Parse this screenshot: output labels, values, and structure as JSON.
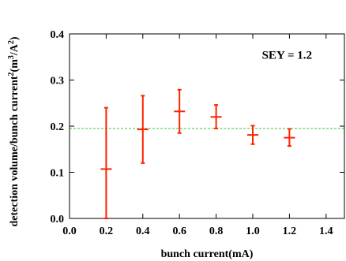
{
  "chart_data": {
    "type": "scatter",
    "xlabel": "bunch current(mA)",
    "ylabel_parts": [
      "detection volume/bunch current",
      "2",
      "(m",
      "3",
      "/A",
      "2",
      ")"
    ],
    "xlim": [
      0.0,
      1.5
    ],
    "ylim": [
      0.0,
      0.4
    ],
    "xticks": [
      "0.0",
      "0.2",
      "0.4",
      "0.6",
      "0.8",
      "1.0",
      "1.2",
      "1.4"
    ],
    "yticks": [
      "0.0",
      "0.1",
      "0.2",
      "0.3",
      "0.4"
    ],
    "annotation": "SEY = 1.2",
    "reference_line": {
      "y": 0.195,
      "color": "#33cc33",
      "style": "dashed"
    },
    "series": [
      {
        "color": "#ff2200",
        "points": [
          {
            "x": 0.2,
            "y": 0.107,
            "ylo": 0.0,
            "yhi": 0.24
          },
          {
            "x": 0.4,
            "y": 0.193,
            "ylo": 0.12,
            "yhi": 0.266
          },
          {
            "x": 0.6,
            "y": 0.232,
            "ylo": 0.185,
            "yhi": 0.279
          },
          {
            "x": 0.8,
            "y": 0.22,
            "ylo": 0.195,
            "yhi": 0.246
          },
          {
            "x": 1.0,
            "y": 0.181,
            "ylo": 0.161,
            "yhi": 0.201
          },
          {
            "x": 1.2,
            "y": 0.175,
            "ylo": 0.157,
            "yhi": 0.194
          }
        ]
      }
    ]
  }
}
